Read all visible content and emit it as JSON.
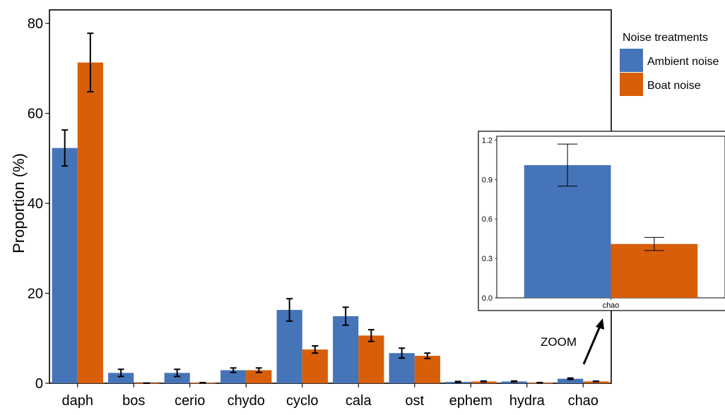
{
  "colors": {
    "ambient": "#4674B8",
    "boat": "#D85E09",
    "axis": "#000000"
  },
  "chart_data": [
    {
      "type": "bar",
      "title": "",
      "xlabel": "",
      "ylabel": "Proportion (%)",
      "ylim": [
        0,
        83
      ],
      "yticks": [
        "0",
        "20",
        "40",
        "60",
        "80"
      ],
      "categories": [
        "daph",
        "bos",
        "cerio",
        "chydo",
        "cyclo",
        "cala",
        "ost",
        "ephem",
        "hydra",
        "chao"
      ],
      "legend": {
        "title": "Noise treatments",
        "position": "right"
      },
      "series": [
        {
          "name": "Ambient noise",
          "values": [
            52.3,
            2.3,
            2.3,
            2.9,
            16.3,
            14.9,
            6.7,
            0.3,
            0.4,
            1.0
          ],
          "error": [
            4.0,
            0.8,
            0.8,
            0.5,
            2.5,
            2.0,
            1.1,
            0.1,
            0.1,
            0.16
          ]
        },
        {
          "name": "Boat noise",
          "values": [
            71.3,
            0.0,
            0.1,
            2.9,
            7.5,
            10.6,
            6.1,
            0.4,
            0.1,
            0.41
          ],
          "error": [
            6.5,
            0.05,
            0.05,
            0.5,
            0.8,
            1.3,
            0.6,
            0.1,
            0.05,
            0.05
          ]
        }
      ]
    },
    {
      "type": "bar",
      "title": "",
      "categories": [
        "chao"
      ],
      "ylim": [
        0,
        1.23
      ],
      "yticks": [
        "0.0",
        "0.3",
        "0.6",
        "0.9",
        "1.2"
      ],
      "series": [
        {
          "name": "Ambient noise",
          "values": [
            1.01
          ],
          "error": [
            0.16
          ]
        },
        {
          "name": "Boat noise",
          "values": [
            0.41
          ],
          "error": [
            0.05
          ]
        }
      ]
    }
  ],
  "annotation": {
    "zoom_label": "ZOOM"
  }
}
